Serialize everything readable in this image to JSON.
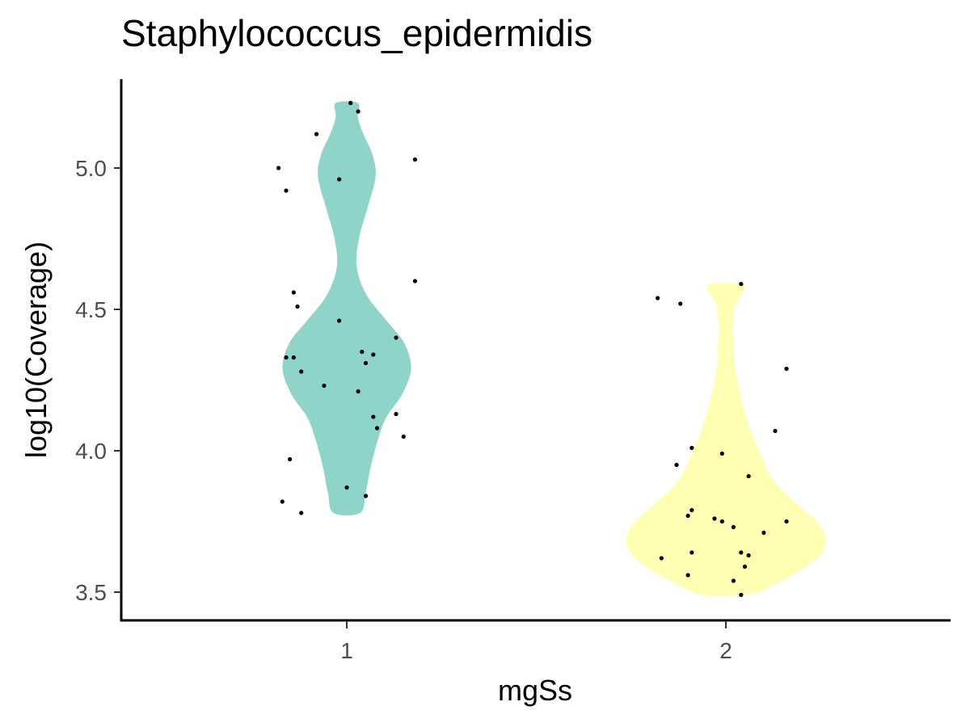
{
  "chart_data": {
    "type": "violin",
    "title": "Staphylococcus_epidermidis",
    "xlabel": "mgSs",
    "ylabel": "log10(Coverage)",
    "categories": [
      "1",
      "2"
    ],
    "ylim": [
      3.41,
      5.33
    ],
    "yticks": [
      "3.5",
      "4.0",
      "4.5",
      "5.0"
    ],
    "grid": false,
    "legend": "none",
    "colors": {
      "1": "#8fd4c8",
      "2": "#ffffb3",
      "point": "#000000",
      "axis": "#000000"
    },
    "violins": [
      {
        "category": "1",
        "profile": [
          [
            3.78,
            0.12
          ],
          [
            3.85,
            0.17
          ],
          [
            3.95,
            0.22
          ],
          [
            4.05,
            0.29
          ],
          [
            4.12,
            0.36
          ],
          [
            4.2,
            0.5
          ],
          [
            4.29,
            0.58
          ],
          [
            4.38,
            0.52
          ],
          [
            4.46,
            0.36
          ],
          [
            4.55,
            0.18
          ],
          [
            4.65,
            0.09
          ],
          [
            4.75,
            0.11
          ],
          [
            4.85,
            0.18
          ],
          [
            4.97,
            0.26
          ],
          [
            5.05,
            0.23
          ],
          [
            5.12,
            0.15
          ],
          [
            5.18,
            0.1
          ],
          [
            5.23,
            0.1
          ]
        ]
      },
      {
        "category": "2",
        "profile": [
          [
            3.49,
            0.2
          ],
          [
            3.52,
            0.4
          ],
          [
            3.58,
            0.68
          ],
          [
            3.63,
            0.85
          ],
          [
            3.69,
            0.9
          ],
          [
            3.75,
            0.82
          ],
          [
            3.82,
            0.62
          ],
          [
            3.9,
            0.42
          ],
          [
            4.0,
            0.3
          ],
          [
            4.1,
            0.2
          ],
          [
            4.2,
            0.13
          ],
          [
            4.3,
            0.08
          ],
          [
            4.38,
            0.07
          ],
          [
            4.45,
            0.06
          ],
          [
            4.52,
            0.09
          ],
          [
            4.56,
            0.15
          ],
          [
            4.59,
            0.15
          ]
        ]
      }
    ],
    "points": [
      {
        "category": "1",
        "x": 1.01,
        "y": 5.23
      },
      {
        "category": "1",
        "x": 1.03,
        "y": 5.2
      },
      {
        "category": "1",
        "x": 0.92,
        "y": 5.12
      },
      {
        "category": "1",
        "x": 1.18,
        "y": 5.03
      },
      {
        "category": "1",
        "x": 0.82,
        "y": 5.0
      },
      {
        "category": "1",
        "x": 0.98,
        "y": 4.96
      },
      {
        "category": "1",
        "x": 0.84,
        "y": 4.92
      },
      {
        "category": "1",
        "x": 1.18,
        "y": 4.6
      },
      {
        "category": "1",
        "x": 0.86,
        "y": 4.56
      },
      {
        "category": "1",
        "x": 0.87,
        "y": 4.51
      },
      {
        "category": "1",
        "x": 0.98,
        "y": 4.46
      },
      {
        "category": "1",
        "x": 1.13,
        "y": 4.4
      },
      {
        "category": "1",
        "x": 1.04,
        "y": 4.35
      },
      {
        "category": "1",
        "x": 1.07,
        "y": 4.34
      },
      {
        "category": "1",
        "x": 0.84,
        "y": 4.33
      },
      {
        "category": "1",
        "x": 0.86,
        "y": 4.33
      },
      {
        "category": "1",
        "x": 1.05,
        "y": 4.31
      },
      {
        "category": "1",
        "x": 0.88,
        "y": 4.28
      },
      {
        "category": "1",
        "x": 0.94,
        "y": 4.23
      },
      {
        "category": "1",
        "x": 1.03,
        "y": 4.21
      },
      {
        "category": "1",
        "x": 1.13,
        "y": 4.13
      },
      {
        "category": "1",
        "x": 1.07,
        "y": 4.12
      },
      {
        "category": "1",
        "x": 1.08,
        "y": 4.08
      },
      {
        "category": "1",
        "x": 1.15,
        "y": 4.05
      },
      {
        "category": "1",
        "x": 0.85,
        "y": 3.97
      },
      {
        "category": "1",
        "x": 1.0,
        "y": 3.87
      },
      {
        "category": "1",
        "x": 1.05,
        "y": 3.84
      },
      {
        "category": "1",
        "x": 0.83,
        "y": 3.82
      },
      {
        "category": "1",
        "x": 0.88,
        "y": 3.78
      },
      {
        "category": "2",
        "x": 2.04,
        "y": 4.59
      },
      {
        "category": "2",
        "x": 1.82,
        "y": 4.54
      },
      {
        "category": "2",
        "x": 1.88,
        "y": 4.52
      },
      {
        "category": "2",
        "x": 2.16,
        "y": 4.29
      },
      {
        "category": "2",
        "x": 2.13,
        "y": 4.07
      },
      {
        "category": "2",
        "x": 1.91,
        "y": 4.01
      },
      {
        "category": "2",
        "x": 1.99,
        "y": 3.99
      },
      {
        "category": "2",
        "x": 1.87,
        "y": 3.95
      },
      {
        "category": "2",
        "x": 2.06,
        "y": 3.91
      },
      {
        "category": "2",
        "x": 1.91,
        "y": 3.79
      },
      {
        "category": "2",
        "x": 1.9,
        "y": 3.77
      },
      {
        "category": "2",
        "x": 1.97,
        "y": 3.76
      },
      {
        "category": "2",
        "x": 2.16,
        "y": 3.75
      },
      {
        "category": "2",
        "x": 1.99,
        "y": 3.75
      },
      {
        "category": "2",
        "x": 2.02,
        "y": 3.73
      },
      {
        "category": "2",
        "x": 2.1,
        "y": 3.71
      },
      {
        "category": "2",
        "x": 2.04,
        "y": 3.64
      },
      {
        "category": "2",
        "x": 1.91,
        "y": 3.64
      },
      {
        "category": "2",
        "x": 2.06,
        "y": 3.63
      },
      {
        "category": "2",
        "x": 1.83,
        "y": 3.62
      },
      {
        "category": "2",
        "x": 2.05,
        "y": 3.59
      },
      {
        "category": "2",
        "x": 1.9,
        "y": 3.56
      },
      {
        "category": "2",
        "x": 2.02,
        "y": 3.54
      },
      {
        "category": "2",
        "x": 2.04,
        "y": 3.49
      }
    ]
  }
}
